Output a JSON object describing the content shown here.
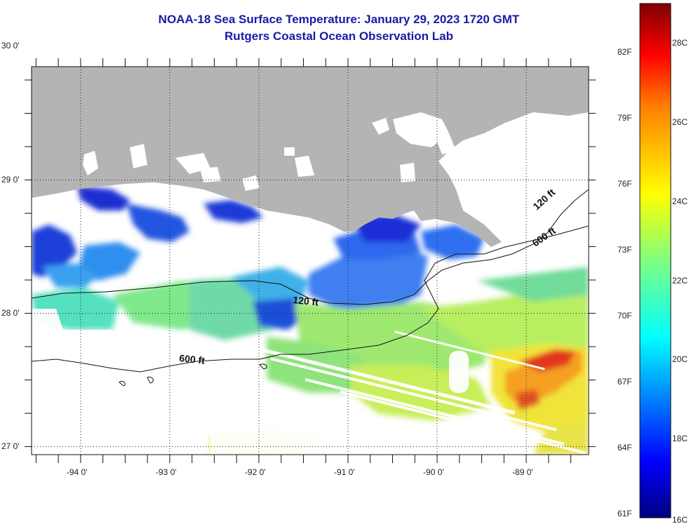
{
  "header": {
    "title": "NOAA-18 Sea Surface Temperature:  January 29, 2023 1720 GMT",
    "subtitle": "Rutgers Coastal Ocean Observation Lab"
  },
  "map": {
    "lon_range": [
      -94.55,
      -88.3
    ],
    "lat_range": [
      26.94,
      29.85
    ],
    "lon_ticks": [
      {
        "value": -94,
        "label": "-94 0'"
      },
      {
        "value": -93,
        "label": "-93 0'"
      },
      {
        "value": -92,
        "label": "-92 0'"
      },
      {
        "value": -91,
        "label": "-91 0'"
      },
      {
        "value": -90,
        "label": "-90 0'"
      },
      {
        "value": -89,
        "label": "-89 0'"
      }
    ],
    "lat_ticks": [
      {
        "value": 30,
        "label": "30 0'"
      },
      {
        "value": 29,
        "label": "29 0'"
      },
      {
        "value": 28,
        "label": "28 0'"
      },
      {
        "value": 27,
        "label": "27 0'"
      }
    ],
    "land_color": "#b4b4b4",
    "cloud_color": "#ffffff",
    "depth_labels": [
      {
        "text": "120 ft"
      },
      {
        "text": "120 ft"
      },
      {
        "text": "600 ft"
      },
      {
        "text": "600 ft"
      }
    ]
  },
  "colorbar": {
    "min_c": 16,
    "max_c": 29,
    "celsius_labels": [
      "28C",
      "26C",
      "24C",
      "22C",
      "20C",
      "18C",
      "16C"
    ],
    "fahrenheit_labels": [
      "82F",
      "79F",
      "76F",
      "73F",
      "70F",
      "67F",
      "64F",
      "61F"
    ],
    "colors": [
      "#00007f",
      "#0000ff",
      "#007fff",
      "#00ffff",
      "#7fff7f",
      "#ffff00",
      "#ff7f00",
      "#ff0000",
      "#7f0000"
    ]
  }
}
